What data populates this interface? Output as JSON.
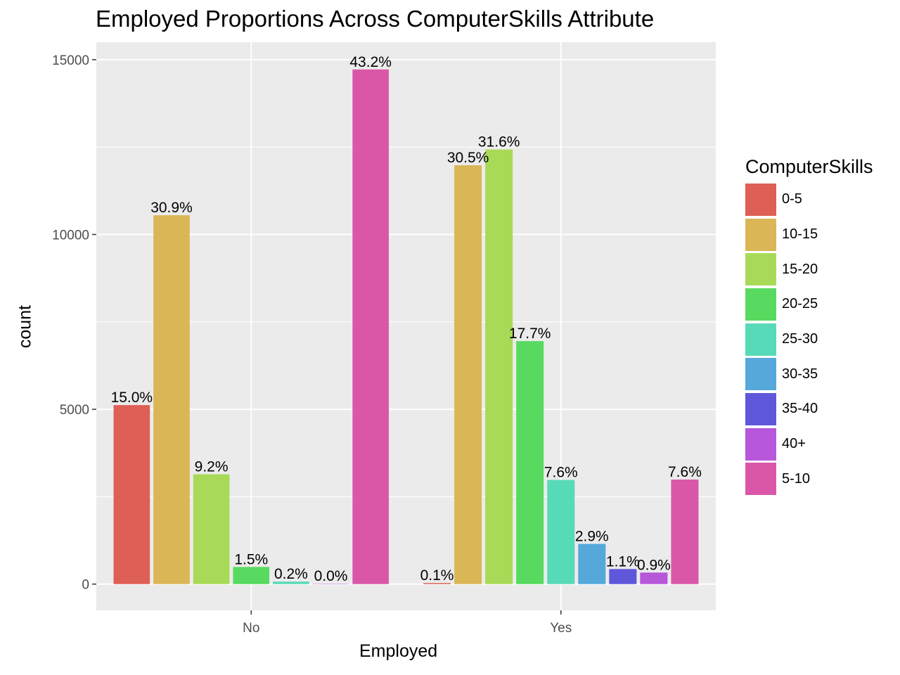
{
  "chart_data": {
    "type": "bar",
    "title": "Employed Proportions Across ComputerSkills Attribute",
    "xlabel": "Employed",
    "ylabel": "count",
    "categories": [
      "No",
      "Yes"
    ],
    "ylim": [
      -750,
      15500
    ],
    "yticks": [
      0,
      5000,
      10000,
      15000
    ],
    "grid": true,
    "legend_title": "ComputerSkills",
    "legend_position": "right",
    "series": [
      {
        "name": "0-5",
        "color": "#DE5F55",
        "values": [
          5120,
          30
        ],
        "labels": [
          "15.0%",
          "0.1%"
        ]
      },
      {
        "name": "10-15",
        "color": "#DAB657",
        "values": [
          10550,
          11980
        ],
        "labels": [
          "30.9%",
          "30.5%"
        ]
      },
      {
        "name": "15-20",
        "color": "#A8DA57",
        "values": [
          3140,
          12430
        ],
        "labels": [
          "9.2%",
          "31.6%"
        ]
      },
      {
        "name": "20-25",
        "color": "#57DA5F",
        "values": [
          490,
          6950
        ],
        "labels": [
          "1.5%",
          "17.7%"
        ]
      },
      {
        "name": "25-30",
        "color": "#57DAB7",
        "values": [
          70,
          2980
        ],
        "labels": [
          "0.2%",
          "7.6%"
        ]
      },
      {
        "name": "30-35",
        "color": "#57A8DA",
        "values": [
          null,
          1150
        ],
        "labels": [
          null,
          "2.9%"
        ]
      },
      {
        "name": "35-40",
        "color": "#5F57DA",
        "values": [
          null,
          430
        ],
        "labels": [
          null,
          "1.1%"
        ]
      },
      {
        "name": "40+",
        "color": "#B757DA",
        "values": [
          10,
          330
        ],
        "labels": [
          "0.0%",
          "0.9%"
        ]
      },
      {
        "name": "5-10",
        "color": "#DA57A8",
        "values": [
          14720,
          2990
        ],
        "labels": [
          "43.2%",
          "7.6%"
        ]
      }
    ]
  }
}
